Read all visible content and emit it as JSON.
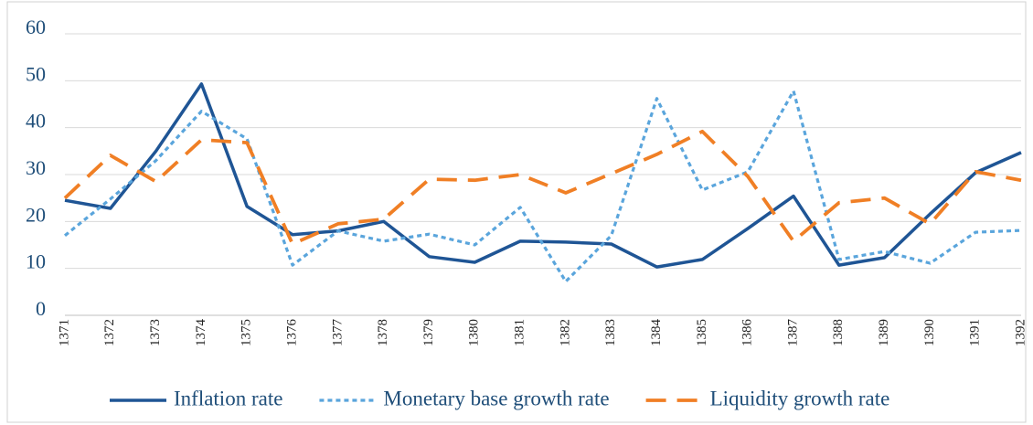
{
  "chart_data": {
    "type": "line",
    "categories": [
      "1371",
      "1372",
      "1373",
      "1374",
      "1375",
      "1376",
      "1377",
      "1378",
      "1379",
      "1380",
      "1381",
      "1382",
      "1383",
      "1384",
      "1385",
      "1386",
      "1387",
      "1388",
      "1389",
      "1390",
      "1391",
      "1392"
    ],
    "series": [
      {
        "name": "Inflation rate",
        "color": "#1f5595",
        "style": "solid",
        "values": [
          24.5,
          22.8,
          35,
          49.3,
          23.2,
          17.2,
          18,
          20,
          12.5,
          11.3,
          15.8,
          15.6,
          15.2,
          10.3,
          11.9,
          18.5,
          25.4,
          10.7,
          12.3,
          21.6,
          30.4,
          34.7
        ]
      },
      {
        "name": "Monetary base growth rate",
        "color": "#5aa5dc",
        "style": "dotted",
        "values": [
          17,
          24.8,
          33,
          43.5,
          37.6,
          10.7,
          18,
          15.8,
          17.3,
          15,
          23,
          7.2,
          17,
          46.2,
          26.7,
          30.6,
          47.8,
          11.9,
          13.6,
          11.1,
          17.7,
          18.1
        ]
      },
      {
        "name": "Liquidity growth rate",
        "color": "#f07f25",
        "style": "dashed",
        "values": [
          25,
          34.1,
          28.5,
          37.4,
          36.8,
          15.2,
          19.5,
          20.5,
          29,
          28.8,
          30,
          26.1,
          30.2,
          34.3,
          39.2,
          29.6,
          15.8,
          24,
          25,
          19.5,
          30.6,
          28.8
        ]
      }
    ],
    "ylim": [
      0,
      60
    ],
    "yticks": [
      0,
      10,
      20,
      30,
      40,
      50,
      60
    ],
    "grid": true,
    "legend": "bottom"
  }
}
